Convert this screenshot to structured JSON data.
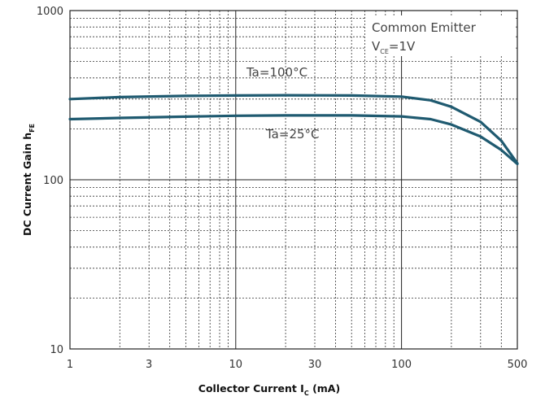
{
  "chart_data": {
    "type": "line",
    "x_scale": "log",
    "y_scale": "log",
    "xlim": [
      1,
      500
    ],
    "ylim": [
      10,
      1000
    ],
    "x_ticks": [
      1,
      3,
      10,
      30,
      100,
      500
    ],
    "x_tick_labels": [
      "1",
      "3",
      "10",
      "30",
      "100",
      "500"
    ],
    "y_ticks": [
      10,
      100,
      1000
    ],
    "y_tick_labels": [
      "10",
      "100",
      "1000"
    ],
    "x_minor_grid": [
      2,
      3,
      4,
      5,
      6,
      7,
      8,
      9,
      20,
      30,
      40,
      50,
      60,
      70,
      80,
      90,
      200,
      300,
      400
    ],
    "y_minor_grid": [
      20,
      30,
      40,
      50,
      60,
      70,
      80,
      90,
      200,
      300,
      400,
      500,
      600,
      700,
      800,
      900
    ],
    "xlabel": {
      "main": "Collector Current I",
      "sub": "C",
      "tail": " (mA)"
    },
    "ylabel": {
      "main": "DC Current Gain h",
      "sub": "FE"
    },
    "grid": true,
    "line_color": "#1f5a70",
    "series": [
      {
        "name": "Ta=100°C",
        "x": [
          1,
          2,
          5,
          10,
          20,
          50,
          100,
          150,
          200,
          300,
          400,
          500
        ],
        "y": [
          300,
          308,
          313,
          315,
          316,
          315,
          310,
          295,
          270,
          220,
          170,
          125
        ]
      },
      {
        "name": "Ta=25°C",
        "x": [
          1,
          2,
          5,
          10,
          20,
          50,
          100,
          150,
          200,
          300,
          400,
          500
        ],
        "y": [
          228,
          232,
          236,
          239,
          240,
          240,
          237,
          228,
          212,
          180,
          150,
          124
        ]
      }
    ],
    "annotations": [
      {
        "text": "Ta=100°C",
        "series": 0
      },
      {
        "text": "Ta=25°C",
        "series": 1
      }
    ],
    "legend": {
      "line1": "Common Emitter",
      "line2_main": "V",
      "line2_sub": "CE",
      "line2_tail": "=1V",
      "placement": "top-right"
    }
  }
}
